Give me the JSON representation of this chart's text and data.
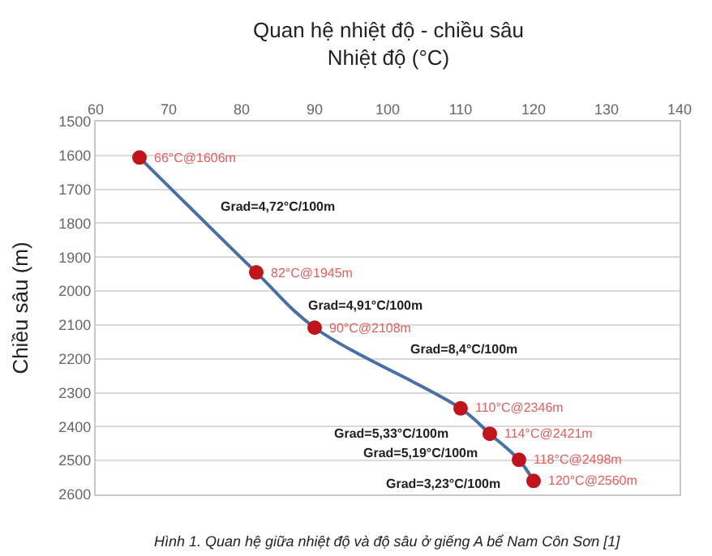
{
  "chart_data": {
    "type": "line",
    "title": "Quan hệ nhiệt độ - chiều sâu",
    "xlabel": "Nhiệt độ (°C)",
    "ylabel": "Chiều sâu (m)",
    "x": [
      66,
      82,
      90,
      110,
      114,
      118,
      120
    ],
    "series": [
      {
        "color": "#4a6fa5",
        "colors": [
          "#c0141c",
          "#c0141c",
          "#c0141c",
          "#c0141c",
          "#c0141c",
          "#c0141c",
          "#c0141c"
        ],
        "values": [
          1606,
          1945,
          2108,
          2346,
          2421,
          2498,
          2560
        ]
      }
    ],
    "marker": "circle",
    "line_style": "solid",
    "xlim": [
      60,
      140
    ],
    "xticks": [
      60,
      70,
      80,
      90,
      100,
      110,
      120,
      130,
      140
    ],
    "ylim": [
      2600,
      1500
    ],
    "yticks": [
      1500,
      1600,
      1700,
      1800,
      1900,
      2000,
      2100,
      2200,
      2300,
      2400,
      2500,
      2600
    ],
    "grid": "y",
    "annotations": [
      {
        "text": "66°C@1606m",
        "x": 66,
        "y": 1606
      },
      {
        "text": "82°C@1945m",
        "x": 82,
        "y": 1945
      },
      {
        "text": "90°C@2108m",
        "x": 90,
        "y": 2108
      },
      {
        "text": "110°C@2346m",
        "x": 110,
        "y": 2346
      },
      {
        "text": "114°C@2421m",
        "x": 114,
        "y": 2421
      },
      {
        "text": "118°C@2498m",
        "x": 118,
        "y": 2498
      },
      {
        "text": "120°C@2560m",
        "x": 120,
        "y": 2560
      },
      "Grad=4,72°C/100m",
      "Grad=4,91°C/100m",
      "Grad=8,4°C/100m",
      "Grad=5,33°C/100m",
      "Grad=5,19°C/100m",
      "Grad=3,23°C/100m",
      "Hình 1. Quan hệ giữa nhiệt độ và độ sâu ở giếng A bể Nam Côn Sơn [1]"
    ]
  }
}
